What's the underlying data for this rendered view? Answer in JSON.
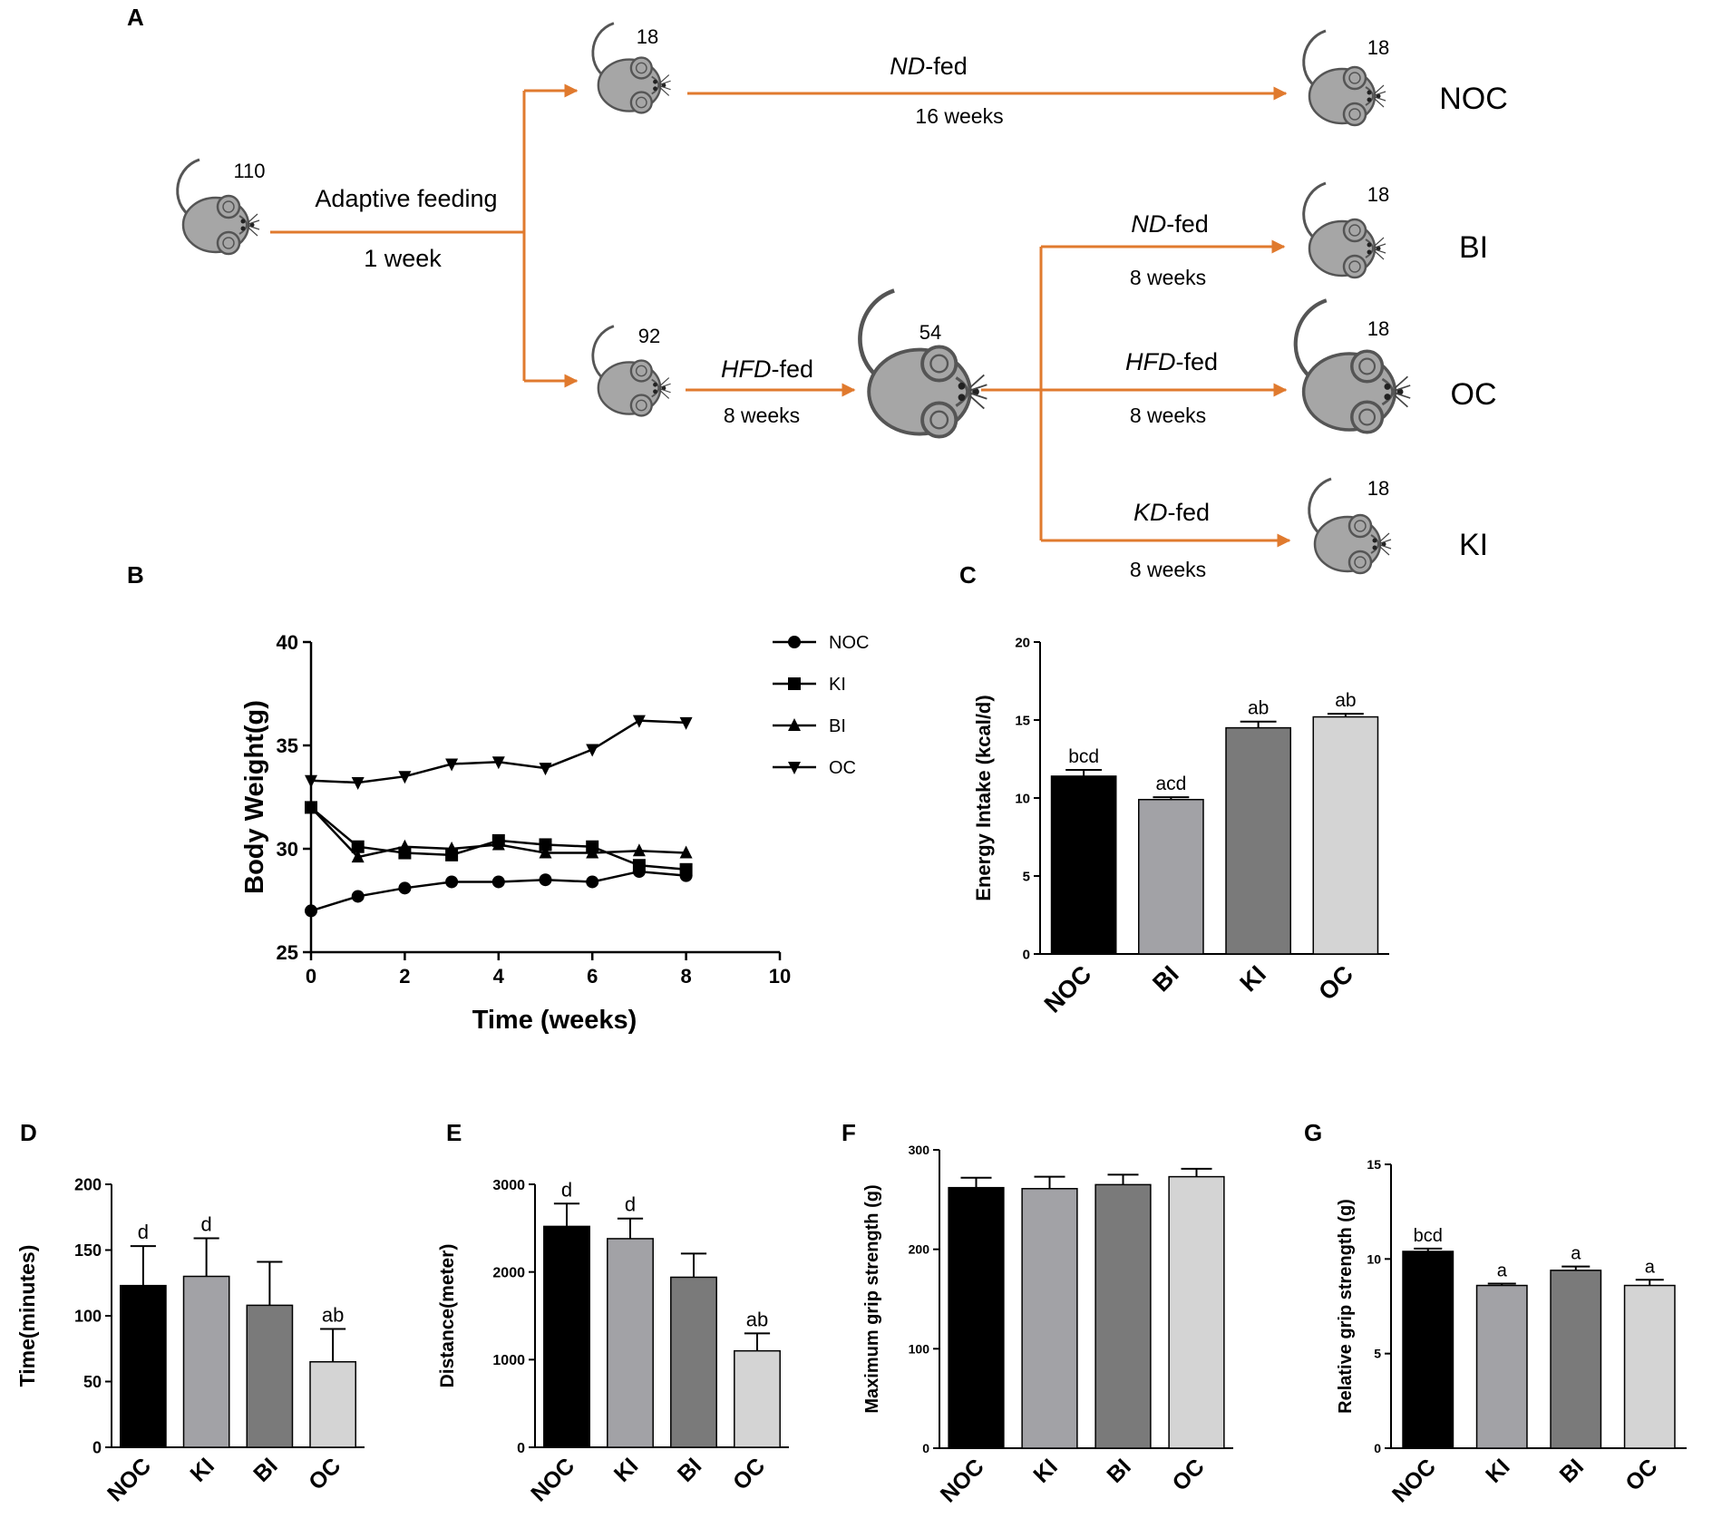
{
  "panel_letters": {
    "A": "A",
    "B": "B",
    "C": "C",
    "D": "D",
    "E": "E",
    "F": "F",
    "G": "G"
  },
  "schematic": {
    "start": {
      "count": "110",
      "step": "Adaptive feeding",
      "duration": "1 week"
    },
    "upper": {
      "count": "18",
      "diet": "ND",
      "suffix": "-fed",
      "duration": "16 weeks",
      "end_count": "18",
      "group": "NOC"
    },
    "lower": {
      "count": "92",
      "diet": "HFD",
      "suffix": "-fed",
      "duration": "8 weeks",
      "obese_count": "54"
    },
    "branches": [
      {
        "diet": "ND",
        "suffix": "-fed",
        "duration": "8 weeks",
        "count": "18",
        "group": "BI"
      },
      {
        "diet": "HFD",
        "suffix": "-fed",
        "duration": "8 weeks",
        "count": "18",
        "group": "OC"
      },
      {
        "diet": "KD",
        "suffix": "-fed",
        "duration": "8 weeks",
        "count": "18",
        "group": "KI"
      }
    ],
    "arrow_color": "#e07a2e",
    "mouse_color": "#a6a6a6"
  },
  "chart_data": [
    {
      "id": "B",
      "type": "line",
      "xlabel": "Time (weeks)",
      "ylabel": "Body Weight(g)",
      "xlim": [
        0,
        10
      ],
      "ylim": [
        25,
        40
      ],
      "xticks": [
        "0",
        "2",
        "4",
        "6",
        "8",
        "10"
      ],
      "yticks": [
        "25",
        "30",
        "35",
        "40"
      ],
      "x": [
        0,
        1,
        2,
        3,
        4,
        5,
        6,
        7,
        8
      ],
      "series": [
        {
          "name": "NOC",
          "marker": "circle",
          "values": [
            27.0,
            27.7,
            28.1,
            28.4,
            28.4,
            28.5,
            28.4,
            28.9,
            28.7
          ]
        },
        {
          "name": "KI",
          "marker": "square",
          "values": [
            32.0,
            30.1,
            29.8,
            29.7,
            30.4,
            30.2,
            30.1,
            29.2,
            29.0
          ]
        },
        {
          "name": "BI",
          "marker": "triangle-up",
          "values": [
            32.0,
            29.6,
            30.1,
            30.0,
            30.2,
            29.8,
            29.8,
            29.9,
            29.8
          ]
        },
        {
          "name": "OC",
          "marker": "triangle-down",
          "values": [
            33.3,
            33.2,
            33.5,
            34.1,
            34.2,
            33.9,
            34.8,
            36.2,
            36.1
          ]
        }
      ],
      "legend": "right"
    },
    {
      "id": "C",
      "type": "bar",
      "ylabel": "Energy Intake (kcal/d)",
      "ylim": [
        0,
        20
      ],
      "yticks": [
        "0",
        "5",
        "10",
        "15",
        "20"
      ],
      "categories": [
        "NOC",
        "BI",
        "KI",
        "OC"
      ],
      "values": [
        11.4,
        9.9,
        14.5,
        15.2
      ],
      "errors": [
        0.4,
        0.15,
        0.4,
        0.2
      ],
      "annotations": [
        "bcd",
        "acd",
        "ab",
        "ab"
      ],
      "colors": [
        "#000000",
        "#a2a2a6",
        "#7a7a7a",
        "#d4d4d4"
      ]
    },
    {
      "id": "D",
      "type": "bar",
      "ylabel": "Time(minutes)",
      "ylim": [
        0,
        200
      ],
      "yticks": [
        "0",
        "50",
        "100",
        "150",
        "200"
      ],
      "categories": [
        "NOC",
        "KI",
        "BI",
        "OC"
      ],
      "values": [
        123,
        130,
        108,
        65
      ],
      "errors": [
        30,
        29,
        33,
        25
      ],
      "annotations": [
        "d",
        "d",
        "",
        "ab"
      ],
      "colors": [
        "#000000",
        "#a2a2a6",
        "#7a7a7a",
        "#d4d4d4"
      ]
    },
    {
      "id": "E",
      "type": "bar",
      "ylabel": "Distance(meter)",
      "ylim": [
        0,
        3000
      ],
      "yticks": [
        "0",
        "1000",
        "2000",
        "3000"
      ],
      "categories": [
        "NOC",
        "KI",
        "BI",
        "OC"
      ],
      "values": [
        2520,
        2380,
        1940,
        1100
      ],
      "errors": [
        260,
        230,
        270,
        200
      ],
      "annotations": [
        "d",
        "d",
        "",
        "ab"
      ],
      "colors": [
        "#000000",
        "#a2a2a6",
        "#7a7a7a",
        "#d4d4d4"
      ]
    },
    {
      "id": "F",
      "type": "bar",
      "ylabel": "Maximum grip strength (g)",
      "ylim": [
        0,
        300
      ],
      "yticks": [
        "0",
        "100",
        "200",
        "300"
      ],
      "categories": [
        "NOC",
        "KI",
        "BI",
        "OC"
      ],
      "values": [
        262,
        261,
        265,
        273
      ],
      "errors": [
        10,
        12,
        10,
        8
      ],
      "annotations": [
        "",
        "",
        "",
        ""
      ],
      "colors": [
        "#000000",
        "#a2a2a6",
        "#7a7a7a",
        "#d4d4d4"
      ]
    },
    {
      "id": "G",
      "type": "bar",
      "ylabel": "Relative grip strength (g)",
      "ylim": [
        0,
        15
      ],
      "yticks": [
        "0",
        "5",
        "10",
        "15"
      ],
      "categories": [
        "NOC",
        "KI",
        "BI",
        "OC"
      ],
      "values": [
        10.4,
        8.6,
        9.4,
        8.6
      ],
      "errors": [
        0.15,
        0.1,
        0.2,
        0.3
      ],
      "annotations": [
        "bcd",
        "a",
        "a",
        "a"
      ],
      "colors": [
        "#000000",
        "#a2a2a6",
        "#7a7a7a",
        "#d4d4d4"
      ]
    }
  ]
}
